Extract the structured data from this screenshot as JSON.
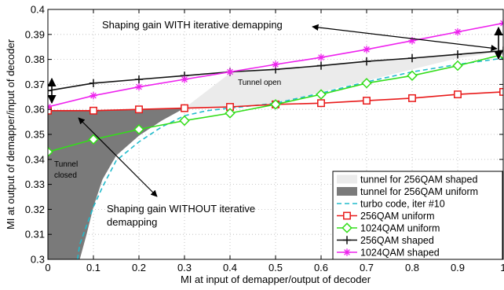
{
  "chart_data": {
    "type": "line",
    "xlabel": "MI at input of demapper/output of decoder",
    "ylabel": "MI at output of demapper/input of decoder",
    "xlim": [
      0,
      1
    ],
    "ylim": [
      0.3,
      0.4
    ],
    "xticks": [
      0,
      0.1,
      0.2,
      0.3,
      0.4,
      0.5,
      0.6,
      0.7,
      0.8,
      0.9,
      1
    ],
    "xtick_labels": [
      "0",
      "0.1",
      "0.2",
      "0.3",
      "0.4",
      "0.5",
      "0.6",
      "0.7",
      "0.8",
      "0.9",
      "1"
    ],
    "yticks": [
      0.3,
      0.31,
      0.32,
      0.33,
      0.34,
      0.35,
      0.36,
      0.37,
      0.38,
      0.39,
      0.4
    ],
    "ytick_labels": [
      "0.3",
      "0.31",
      "0.32",
      "0.33",
      "0.34",
      "0.35",
      "0.36",
      "0.37",
      "0.38",
      "0.39",
      "0.4"
    ],
    "grid": true,
    "legend_position": "bottom-right",
    "regions": [
      {
        "name": "tunnel for 256QAM shaped",
        "color": "#ebebeb",
        "points": [
          [
            0.4,
            0.3745
          ],
          [
            0.5,
            0.376
          ],
          [
            0.6,
            0.3775
          ],
          [
            0.7,
            0.379
          ],
          [
            0.8,
            0.3805
          ],
          [
            0.9,
            0.382
          ],
          [
            1.0,
            0.3835
          ],
          [
            0.95,
            0.3818
          ],
          [
            0.9,
            0.3805
          ],
          [
            0.8,
            0.376
          ],
          [
            0.7,
            0.3715
          ],
          [
            0.6,
            0.367
          ],
          [
            0.55,
            0.3645
          ],
          [
            0.5,
            0.3625
          ],
          [
            0.4,
            0.3605
          ],
          [
            0.3,
            0.3605
          ]
        ]
      },
      {
        "name": "tunnel for 256QAM uniform",
        "color": "#7a7a7a",
        "points": [
          [
            0,
            0.3595
          ],
          [
            0.1,
            0.3595
          ],
          [
            0.2,
            0.3598
          ],
          [
            0.3,
            0.3605
          ],
          [
            0.25,
            0.3555
          ],
          [
            0.2,
            0.3495
          ],
          [
            0.15,
            0.3415
          ],
          [
            0.12,
            0.332
          ],
          [
            0.1,
            0.321
          ],
          [
            0.085,
            0.31
          ],
          [
            0.07,
            0.3
          ],
          [
            0,
            0.3
          ]
        ]
      }
    ],
    "series": [
      {
        "name": "turbo code, iter #10",
        "color": "#22bbcc",
        "style": "dashed",
        "marker": "none",
        "x": [
          0.065,
          0.07,
          0.08,
          0.09,
          0.1,
          0.12,
          0.15,
          0.2,
          0.25,
          0.3,
          0.35,
          0.4,
          0.5,
          0.6,
          0.7,
          0.8,
          0.9,
          1.0
        ],
        "y": [
          0.3,
          0.306,
          0.311,
          0.316,
          0.321,
          0.329,
          0.3395,
          0.347,
          0.353,
          0.3575,
          0.3595,
          0.3605,
          0.3625,
          0.3665,
          0.371,
          0.375,
          0.378,
          0.3805
        ]
      },
      {
        "name": "256QAM uniform",
        "color": "#e81a1a",
        "style": "solid",
        "marker": "square",
        "x": [
          0,
          0.1,
          0.2,
          0.3,
          0.4,
          0.5,
          0.6,
          0.7,
          0.8,
          0.9,
          1.0
        ],
        "y": [
          0.3595,
          0.3595,
          0.36,
          0.3605,
          0.361,
          0.362,
          0.3625,
          0.3635,
          0.3645,
          0.366,
          0.367
        ]
      },
      {
        "name": "1024QAM uniform",
        "color": "#33dd1a",
        "style": "solid",
        "marker": "diamond",
        "x": [
          0,
          0.1,
          0.2,
          0.3,
          0.4,
          0.5,
          0.6,
          0.7,
          0.8,
          0.9,
          1.0
        ],
        "y": [
          0.343,
          0.348,
          0.352,
          0.3555,
          0.3585,
          0.362,
          0.366,
          0.3705,
          0.3735,
          0.3775,
          0.382
        ]
      },
      {
        "name": "256QAM shaped",
        "color": "#111111",
        "style": "solid",
        "marker": "plus",
        "x": [
          0,
          0.1,
          0.2,
          0.3,
          0.4,
          0.5,
          0.6,
          0.7,
          0.8,
          0.9,
          1.0
        ],
        "y": [
          0.3675,
          0.3705,
          0.372,
          0.3735,
          0.375,
          0.376,
          0.3775,
          0.3792,
          0.3805,
          0.382,
          0.3835
        ]
      },
      {
        "name": "1024QAM shaped",
        "color": "#ee22ee",
        "style": "solid",
        "marker": "star",
        "x": [
          0,
          0.1,
          0.2,
          0.3,
          0.4,
          0.5,
          0.6,
          0.7,
          0.8,
          0.9,
          1.0
        ],
        "y": [
          0.361,
          0.3655,
          0.369,
          0.372,
          0.375,
          0.378,
          0.3808,
          0.384,
          0.3875,
          0.391,
          0.3945
        ]
      }
    ],
    "annotations": [
      {
        "id": "shaping_with",
        "text": "Shaping gain WITH iterative demapping"
      },
      {
        "id": "tunnel_open",
        "text": "Tunnel open"
      },
      {
        "id": "tunnel_closed",
        "lines": [
          "Tunnel",
          "closed"
        ]
      },
      {
        "id": "shaping_without",
        "lines": [
          "Shaping gain WITHOUT iterative",
          "demapping"
        ]
      }
    ],
    "legend": [
      {
        "label": "tunnel for 256QAM shaped",
        "kind": "patch",
        "color": "#ebebeb"
      },
      {
        "label": "tunnel for 256QAM uniform",
        "kind": "patch",
        "color": "#7a7a7a"
      },
      {
        "label": "turbo code, iter #10",
        "kind": "line",
        "color": "#22bbcc",
        "style": "dashed",
        "marker": "none"
      },
      {
        "label": "256QAM uniform",
        "kind": "line",
        "color": "#e81a1a",
        "marker": "square"
      },
      {
        "label": "1024QAM uniform",
        "kind": "line",
        "color": "#33dd1a",
        "marker": "diamond"
      },
      {
        "label": "256QAM shaped",
        "kind": "line",
        "color": "#111111",
        "marker": "plus"
      },
      {
        "label": "1024QAM shaped",
        "kind": "line",
        "color": "#ee22ee",
        "marker": "star"
      }
    ]
  }
}
